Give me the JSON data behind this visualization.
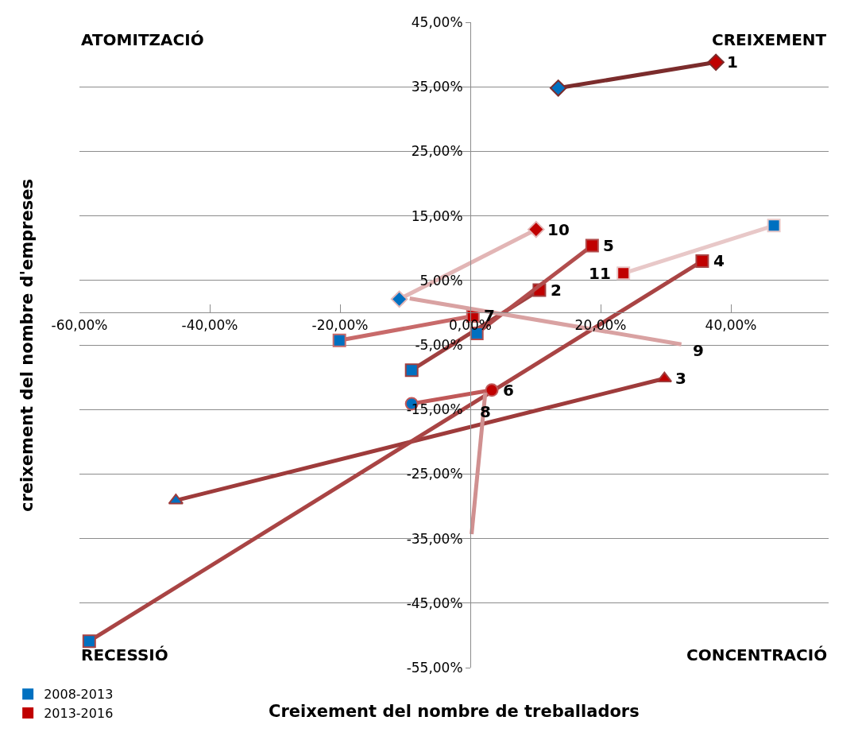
{
  "chart_data": {
    "type": "line",
    "xlabel": "Creixement del nombre de treballadors",
    "ylabel": "creixement del nombre d'empreses",
    "xlim": [
      -60,
      55
    ],
    "xticks": [
      {
        "value": -60,
        "label": "-60,00%"
      },
      {
        "value": -40,
        "label": "-40,00%"
      },
      {
        "value": -20,
        "label": "-20,00%"
      },
      {
        "value": 0,
        "label": "0,00%"
      },
      {
        "value": 20,
        "label": "20,00%"
      },
      {
        "value": 40,
        "label": "40,00%"
      }
    ],
    "ylim": [
      -55,
      45
    ],
    "yticks": [
      {
        "value": 45,
        "label": "45,00%"
      },
      {
        "value": 35,
        "label": "35,00%"
      },
      {
        "value": 25,
        "label": "25,00%"
      },
      {
        "value": 15,
        "label": "15,00%"
      },
      {
        "value": 5,
        "label": "5,00%"
      },
      {
        "value": -5,
        "label": "-5,00%"
      },
      {
        "value": -15,
        "label": "-15,00%"
      },
      {
        "value": -25,
        "label": "-25,00%"
      },
      {
        "value": -35,
        "label": "-35,00%"
      },
      {
        "value": -45,
        "label": "-45,00%"
      },
      {
        "value": -55,
        "label": "-55,00%"
      }
    ],
    "grid": "y",
    "legend": "bottom left",
    "series": [
      {
        "color": "#7b2c2c",
        "colors": [
          "#0070c0",
          "#c00000"
        ],
        "marker": "diamond",
        "x": [
          13.5,
          37.7
        ],
        "values": [
          34.8,
          38.8
        ]
      },
      {
        "color": "#a04040",
        "colors": [
          "#0070c0",
          "#c00000"
        ],
        "marker": "square",
        "x": [
          -9.0,
          10.6
        ],
        "values": [
          -8.9,
          3.5
        ]
      },
      {
        "color": "#9e3b3b",
        "colors": [
          "#0070c0",
          "#c00000"
        ],
        "marker": "triangle",
        "x": [
          -45.2,
          29.8
        ],
        "values": [
          -29.1,
          -10.2
        ]
      },
      {
        "color": "#a94444",
        "colors": [
          "#0070c0",
          "#c00000"
        ],
        "marker": "square",
        "x": [
          -58.5,
          35.6
        ],
        "values": [
          -50.9,
          8.0
        ]
      },
      {
        "color": "#b24d4d",
        "colors": [
          "#0070c0",
          "#c00000"
        ],
        "marker": "square",
        "x": [
          1.0,
          18.7
        ],
        "values": [
          -3.2,
          10.4
        ]
      },
      {
        "color": "#c05858",
        "colors": [
          "#0070c0",
          "#c00000"
        ],
        "marker": "circle",
        "x": [
          -9.0,
          3.3
        ],
        "values": [
          -14.1,
          -12.0
        ]
      },
      {
        "color": "#c86a6a",
        "colors": [
          "#0070c0",
          "#c00000"
        ],
        "marker": "square",
        "x": [
          -20.1,
          0.4
        ],
        "values": [
          -4.3,
          -0.5
        ]
      },
      {
        "color": "#d09090",
        "colors": [
          "#0070c0",
          "#c00000"
        ],
        "marker": "none",
        "x": [
          0.2,
          2.3
        ],
        "values": [
          -34.3,
          -12.4
        ]
      },
      {
        "color": "#d9a2a2",
        "colors": [
          "#0070c0",
          "#c00000"
        ],
        "marker": "none",
        "x": [
          -9.3,
          32.4
        ],
        "values": [
          2.2,
          -4.9
        ]
      },
      {
        "color": "#e2b5b5",
        "colors": [
          "#0070c0",
          "#c00000"
        ],
        "marker": "diamond",
        "x": [
          -10.9,
          10.1
        ],
        "values": [
          2.1,
          12.9
        ]
      },
      {
        "color": "#e8c8c8",
        "colors": [
          "#0070c0",
          "#c00000"
        ],
        "marker": "square",
        "x": [
          46.6,
          23.5
        ],
        "values": [
          13.5,
          6.1
        ]
      },
      {
        "type": "scatter",
        "name": "2008-2013",
        "color": "#0070c0"
      },
      {
        "type": "scatter",
        "name": "2013-2016",
        "color": "#c00000"
      }
    ],
    "annotations": [
      "ATOMITZACIÓ",
      "CREIXEMENT",
      "RECESSIÓ",
      "CONCENTRACIÓ",
      {
        "text": "1",
        "x": 37.7,
        "y": 38.8
      },
      {
        "text": "2",
        "x": 10.6,
        "y": 3.5
      },
      {
        "text": "3",
        "x": 29.8,
        "y": -10.2
      },
      {
        "text": "4",
        "x": 35.6,
        "y": 8.0
      },
      {
        "text": "5",
        "x": 18.7,
        "y": 10.4
      },
      {
        "text": "6",
        "x": 3.3,
        "y": -12.0
      },
      {
        "text": "7",
        "x": 0.4,
        "y": -0.5
      },
      {
        "text": "8",
        "x": 2.3,
        "y": -12.4
      },
      {
        "text": "9",
        "x": 32.4,
        "y": -4.9
      },
      {
        "text": "10",
        "x": 10.1,
        "y": 12.9
      },
      {
        "text": "11",
        "x": 23.5,
        "y": 6.1
      }
    ]
  }
}
